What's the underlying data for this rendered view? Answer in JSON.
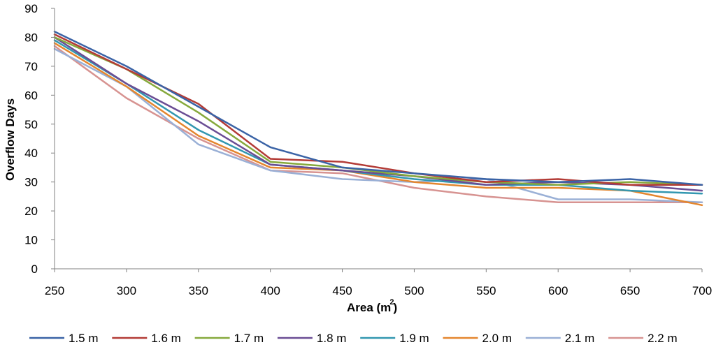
{
  "chart_data": {
    "type": "line",
    "title": "",
    "xlabel": "Area (m",
    "xlabel_sup": "2",
    "xlabel_close": ")",
    "ylabel": "Overflow Days",
    "x": [
      250,
      300,
      350,
      400,
      450,
      500,
      550,
      600,
      650,
      700
    ],
    "xlim": [
      250,
      700
    ],
    "ylim": [
      0,
      90
    ],
    "yticks": [
      0,
      10,
      20,
      30,
      40,
      50,
      60,
      70,
      80,
      90
    ],
    "grid": false,
    "legend": "bottom",
    "series": [
      {
        "name": "1.5 m",
        "color": "#3A63A6",
        "values": [
          82,
          70,
          56,
          42,
          35,
          33,
          31,
          30,
          31,
          29
        ]
      },
      {
        "name": "1.6 m",
        "color": "#B33B36",
        "values": [
          81,
          69,
          57,
          38,
          37,
          33,
          30,
          31,
          29,
          29
        ]
      },
      {
        "name": "1.7 m",
        "color": "#86A93C",
        "values": [
          80,
          69,
          54,
          37,
          35,
          32,
          30,
          29,
          30,
          29
        ]
      },
      {
        "name": "1.8 m",
        "color": "#6A4D94",
        "values": [
          80,
          64,
          51,
          36,
          34,
          32,
          29,
          30,
          29,
          27
        ]
      },
      {
        "name": "1.9 m",
        "color": "#3297B0",
        "values": [
          79,
          64,
          48,
          36,
          34,
          31,
          29,
          29,
          27,
          26
        ]
      },
      {
        "name": "2.0 m",
        "color": "#E4862E",
        "values": [
          78,
          63,
          46,
          35,
          34,
          30,
          28,
          28,
          27,
          22
        ]
      },
      {
        "name": "2.1 m",
        "color": "#9AB0D6",
        "values": [
          76,
          63,
          43,
          34,
          31,
          30,
          31,
          24,
          24,
          23
        ]
      },
      {
        "name": "2.2 m",
        "color": "#D79391",
        "values": [
          77,
          59,
          45,
          34,
          33,
          28,
          25,
          23,
          23,
          23
        ]
      }
    ]
  }
}
